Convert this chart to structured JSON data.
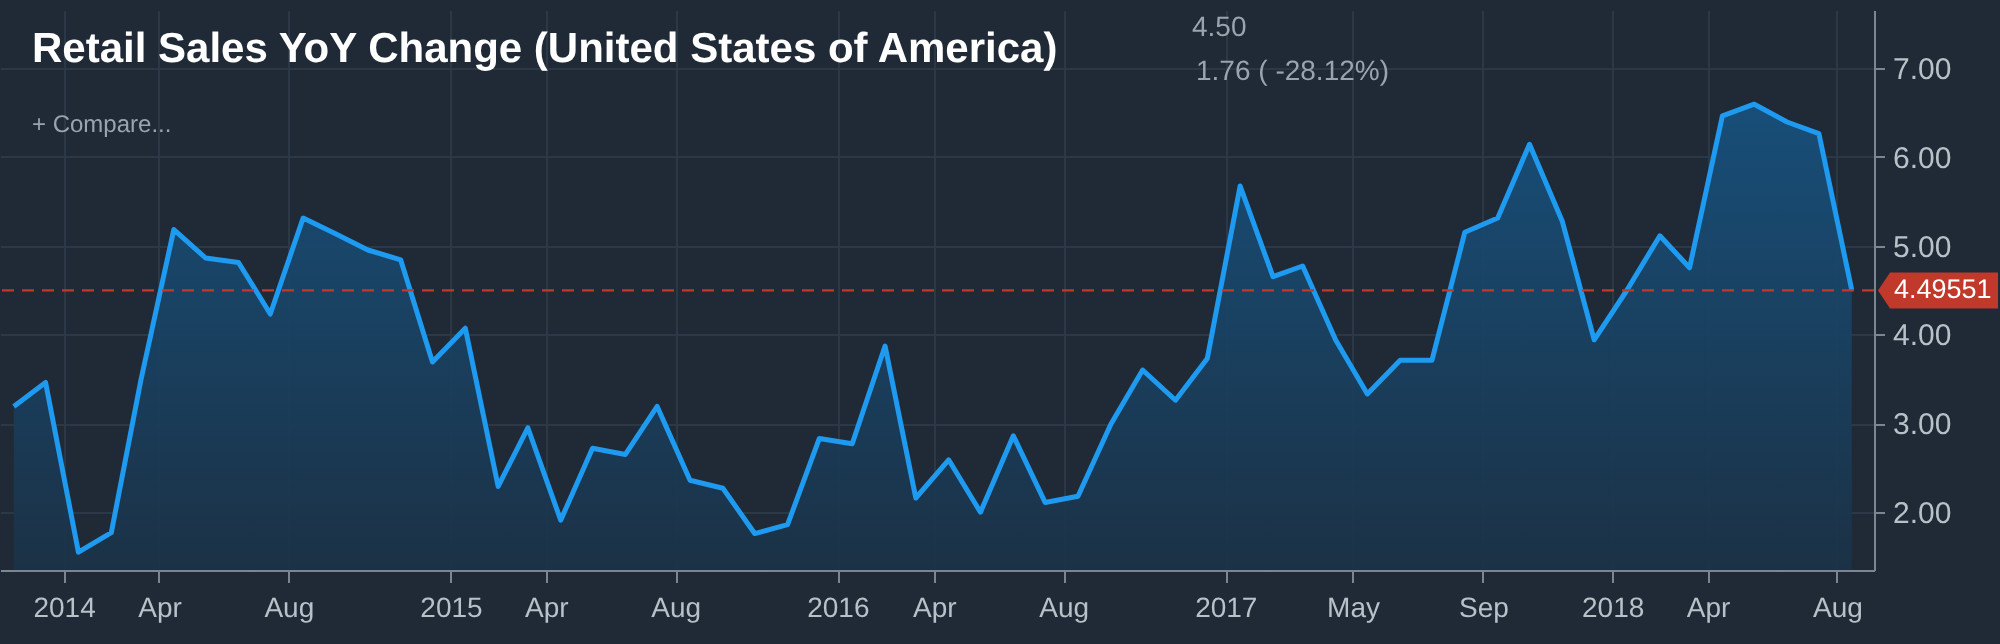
{
  "chart_data": {
    "type": "area",
    "title": "Retail Sales YoY Change (United States of America)",
    "annotations": [
      "4.50",
      "1.76 ( -28.12%)",
      "+ Compare..."
    ],
    "x": [
      "2013-11-15",
      "2013-12-15",
      "2014-01-15",
      "2014-02-15",
      "2014-03-15",
      "2014-04-15",
      "2014-05-15",
      "2014-06-15",
      "2014-07-15",
      "2014-08-15",
      "2014-09-15",
      "2014-10-15",
      "2014-11-15",
      "2014-12-15",
      "2015-01-15",
      "2015-02-15",
      "2015-03-15",
      "2015-04-15",
      "2015-05-15",
      "2015-06-15",
      "2015-07-15",
      "2015-08-15",
      "2015-09-15",
      "2015-10-15",
      "2015-11-15",
      "2015-12-15",
      "2016-01-15",
      "2016-02-15",
      "2016-03-15",
      "2016-04-15",
      "2016-05-15",
      "2016-06-15",
      "2016-07-15",
      "2016-08-15",
      "2016-09-15",
      "2016-10-15",
      "2016-11-15",
      "2016-12-15",
      "2017-01-15",
      "2017-02-15",
      "2017-03-15",
      "2017-04-15",
      "2017-05-15",
      "2017-06-15",
      "2017-07-15",
      "2017-08-15",
      "2017-09-15",
      "2017-10-15",
      "2017-11-15",
      "2017-12-15",
      "2018-01-15",
      "2018-02-15",
      "2018-03-15",
      "2018-04-15",
      "2018-05-15",
      "2018-06-15",
      "2018-07-15",
      "2018-08-15"
    ],
    "series": [
      {
        "color": "#1e9bf0",
        "values": [
          3.19,
          3.46,
          1.55,
          1.77,
          3.49,
          5.18,
          4.86,
          4.81,
          4.23,
          5.31,
          5.13,
          4.95,
          4.84,
          3.69,
          4.07,
          2.29,
          2.95,
          1.91,
          2.72,
          2.65,
          3.19,
          2.36,
          2.27,
          1.76,
          1.86,
          2.83,
          2.77,
          3.87,
          2.16,
          2.59,
          2.0,
          2.86,
          2.11,
          2.18,
          2.99,
          3.6,
          3.26,
          3.73,
          5.67,
          4.65,
          4.77,
          3.94,
          3.33,
          3.71,
          3.71,
          5.15,
          5.31,
          6.14,
          5.27,
          3.94,
          4.5,
          5.11,
          4.75,
          6.46,
          6.59,
          6.39,
          6.26,
          4.5
        ]
      }
    ],
    "xlim": [
      "2013-11-02",
      "2018-09-05"
    ],
    "xticks": [
      {
        "value": "2014-01-01",
        "label": "2014"
      },
      {
        "value": "2014-04-01",
        "label": "Apr"
      },
      {
        "value": "2014-08-01",
        "label": "Aug"
      },
      {
        "value": "2015-01-01",
        "label": "2015"
      },
      {
        "value": "2015-04-01",
        "label": "Apr"
      },
      {
        "value": "2015-08-01",
        "label": "Aug"
      },
      {
        "value": "2016-01-01",
        "label": "2016"
      },
      {
        "value": "2016-04-01",
        "label": "Apr"
      },
      {
        "value": "2016-08-01",
        "label": "Aug"
      },
      {
        "value": "2017-01-01",
        "label": "2017"
      },
      {
        "value": "2017-05-01",
        "label": "May"
      },
      {
        "value": "2017-09-01",
        "label": "Sep"
      },
      {
        "value": "2018-01-01",
        "label": "2018"
      },
      {
        "value": "2018-04-01",
        "label": "Apr"
      },
      {
        "value": "2018-08-01",
        "label": "Aug"
      }
    ],
    "ylim": [
      1.35,
      7.65
    ],
    "yticks": [
      {
        "value": 2,
        "label": "2.00"
      },
      {
        "value": 3,
        "label": "3.00"
      },
      {
        "value": 4,
        "label": "4.00"
      },
      {
        "value": 5,
        "label": "5.00"
      },
      {
        "value": 6,
        "label": "6.00"
      },
      {
        "value": 7,
        "label": "7.00"
      }
    ],
    "ref_lines": [
      {
        "axis": "y",
        "value": 4.49551,
        "label": "4.49551",
        "color": "#c0392b",
        "line_style": "dashed"
      }
    ],
    "grid": true,
    "marker": "none",
    "line_style": "solid"
  }
}
